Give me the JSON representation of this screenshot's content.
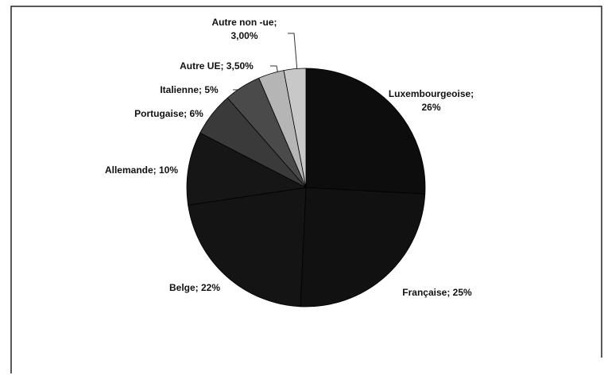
{
  "chart_data": {
    "type": "pie",
    "labels": [
      "Luxembourgeoise; 26%",
      "Française; 25%",
      "Belge; 22%",
      "Allemande; 10%",
      "Portugaise; 6%",
      "Italienne; 5%",
      "Autre UE; 3,50%",
      "Autre non -ue; 3,00%"
    ],
    "values": [
      26,
      25,
      22,
      10,
      6,
      5,
      3.5,
      3
    ],
    "colors": [
      "#0d0d0d",
      "#111111",
      "#141414",
      "#161616",
      "#3a3a3a",
      "#4a4a4a",
      "#b5b5b5",
      "#c8c8c8"
    ]
  }
}
